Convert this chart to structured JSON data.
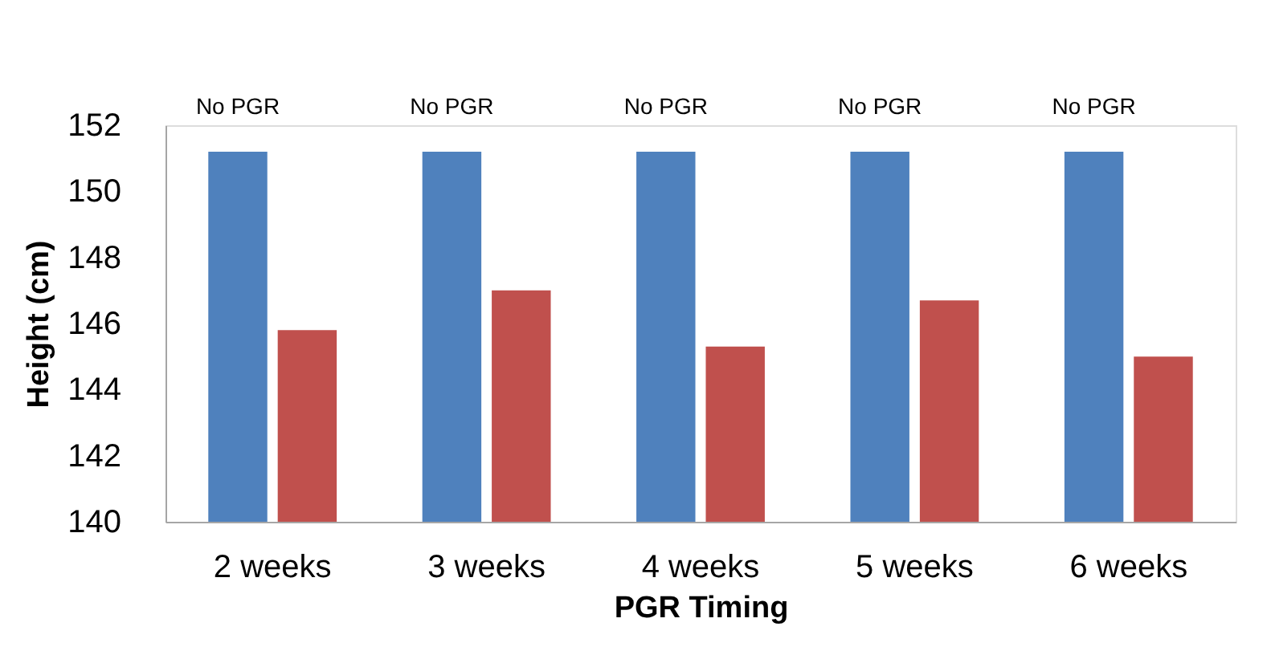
{
  "chart_data": {
    "type": "bar",
    "xlabel": "PGR Timing",
    "ylabel": "Height (cm)",
    "categories": [
      "2 weeks",
      "3 weeks",
      "4 weeks",
      "5 weeks",
      "6 weeks"
    ],
    "series": [
      {
        "color": "#4f81bd",
        "values": [
          151.2,
          151.2,
          151.2,
          151.2,
          151.2
        ]
      },
      {
        "color": "#c0504d",
        "values": [
          145.8,
          147.0,
          145.3,
          146.7,
          145.0
        ]
      }
    ],
    "ylim": [
      140,
      152
    ],
    "yticks": [
      140,
      142,
      144,
      146,
      148,
      150,
      152
    ],
    "grid": false,
    "legend": false,
    "annotations": [
      "No PGR",
      "No PGR",
      "No PGR",
      "No PGR",
      "No PGR"
    ]
  }
}
